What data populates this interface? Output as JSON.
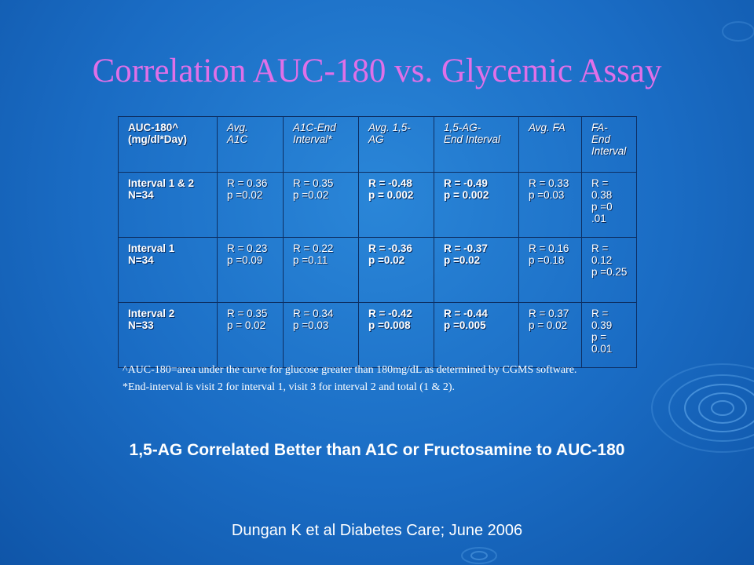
{
  "title": "Correlation AUC-180 vs. Glycemic Assay",
  "table": {
    "header": [
      "AUC-180^\n(mg/dl*Day)",
      "Avg.\nA1C",
      "A1C-End\nInterval*",
      "Avg. 1,5-\nAG",
      "1,5-AG-\nEnd Interval",
      "Avg. FA",
      "FA-\nEnd\nInterval"
    ],
    "rows": [
      {
        "label": "Interval 1 & 2\nN=34",
        "cells": [
          "R = 0.36\np =0.02",
          "R = 0.35\np =0.02",
          "R = -0.48\np = 0.002",
          "R = -0.49\np = 0.002",
          "R = 0.33\np =0.03",
          "R =\n0.38\np =0\n.01"
        ]
      },
      {
        "label": "Interval 1\nN=34",
        "cells": [
          "R = 0.23\np =0.09",
          "R = 0.22\np =0.11",
          "R = -0.36\np =0.02",
          "R = -0.37\np =0.02",
          "R = 0.16\np =0.18",
          "R =\n0.12\np =0.25"
        ]
      },
      {
        "label": "Interval 2\nN=33",
        "cells": [
          "R = 0.35\np = 0.02",
          "R = 0.34\np =0.03",
          "R = -0.42\np =0.008",
          "R = -0.44\np =0.005",
          "R = 0.37\np = 0.02",
          "R =\n0.39\np =\n0.01"
        ]
      }
    ]
  },
  "footnotes": [
    "^AUC-180=area under the curve for glucose greater than 180mg/dL as determined by CGMS software.",
    "*End-interval is visit 2 for interval 1, visit 3 for interval 2 and total (1 & 2)."
  ],
  "conclusion": "1,5-AG Correlated Better than A1C or Fructosamine to AUC-180",
  "citation": "Dungan K et al Diabetes Care; June 2006",
  "colors": {
    "title": "#e070e8",
    "highlight": "#e23a2a",
    "background": "#1a6cc4"
  }
}
